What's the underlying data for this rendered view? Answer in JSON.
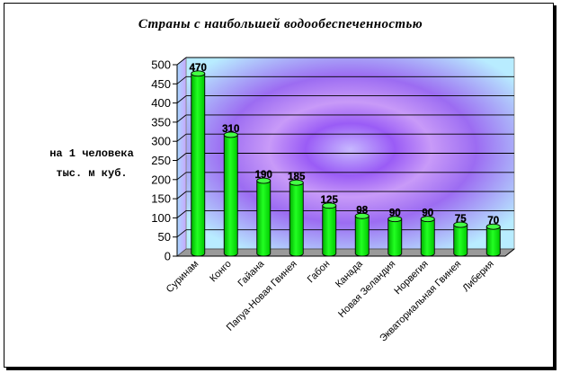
{
  "chart_data": {
    "type": "bar",
    "title": "Страны с наибольшей водообеспеченностью",
    "ylabel_lines": [
      "на 1 человека",
      "тыс. м куб."
    ],
    "xlabel": "",
    "categories": [
      "Суринам",
      "Конго",
      "Гайана",
      "Папуа-Новая Гвинея",
      "Габон",
      "Канада",
      "Новая Зеландия",
      "Норвегия",
      "Экваториальная Гвинея",
      "Либерия"
    ],
    "values": [
      470,
      310,
      190,
      185,
      125,
      98,
      90,
      90,
      75,
      70
    ],
    "ylim": [
      0,
      500
    ],
    "yticks": [
      0,
      50,
      100,
      150,
      200,
      250,
      300,
      350,
      400,
      450,
      500
    ],
    "grid": true,
    "legend": "none",
    "bar_color": "#00e000",
    "bar_edge_color": "#000000",
    "wall_color_edge": "#b8ecff",
    "wall_color_center": "#8c3cf0"
  }
}
